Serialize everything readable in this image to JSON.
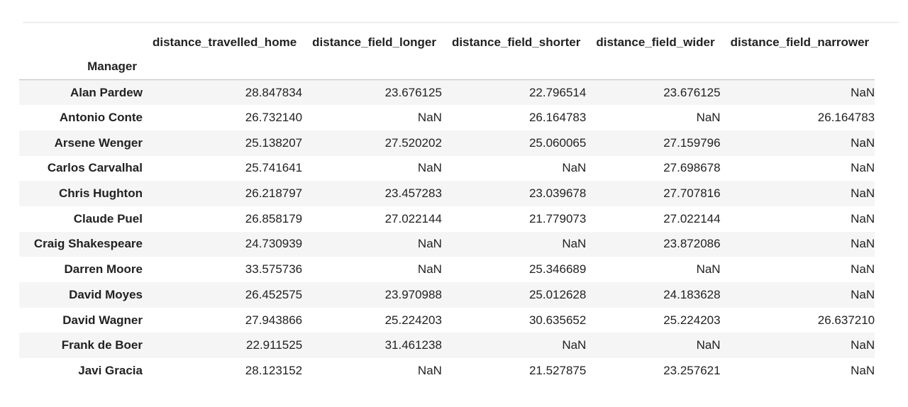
{
  "table": {
    "index_name": "Manager",
    "columns": [
      "distance_travelled_home",
      "distance_field_longer",
      "distance_field_shorter",
      "distance_field_wider",
      "distance_field_narrower"
    ],
    "rows": [
      {
        "index": "Alan Pardew",
        "values": [
          "28.847834",
          "23.676125",
          "22.796514",
          "23.676125",
          "NaN"
        ]
      },
      {
        "index": "Antonio Conte",
        "values": [
          "26.732140",
          "NaN",
          "26.164783",
          "NaN",
          "26.164783"
        ]
      },
      {
        "index": "Arsene Wenger",
        "values": [
          "25.138207",
          "27.520202",
          "25.060065",
          "27.159796",
          "NaN"
        ]
      },
      {
        "index": "Carlos Carvalhal",
        "values": [
          "25.741641",
          "NaN",
          "NaN",
          "27.698678",
          "NaN"
        ]
      },
      {
        "index": "Chris Hughton",
        "values": [
          "26.218797",
          "23.457283",
          "23.039678",
          "27.707816",
          "NaN"
        ]
      },
      {
        "index": "Claude Puel",
        "values": [
          "26.858179",
          "27.022144",
          "21.779073",
          "27.022144",
          "NaN"
        ]
      },
      {
        "index": "Craig Shakespeare",
        "values": [
          "24.730939",
          "NaN",
          "NaN",
          "23.872086",
          "NaN"
        ]
      },
      {
        "index": "Darren Moore",
        "values": [
          "33.575736",
          "NaN",
          "25.346689",
          "NaN",
          "NaN"
        ]
      },
      {
        "index": "David Moyes",
        "values": [
          "26.452575",
          "23.970988",
          "25.012628",
          "24.183628",
          "NaN"
        ]
      },
      {
        "index": "David Wagner",
        "values": [
          "27.943866",
          "25.224203",
          "30.635652",
          "25.224203",
          "26.637210"
        ]
      },
      {
        "index": "Frank de Boer",
        "values": [
          "22.911525",
          "31.461238",
          "NaN",
          "NaN",
          "NaN"
        ]
      },
      {
        "index": "Javi Gracia",
        "values": [
          "28.123152",
          "NaN",
          "21.527875",
          "23.257621",
          "NaN"
        ]
      }
    ]
  }
}
